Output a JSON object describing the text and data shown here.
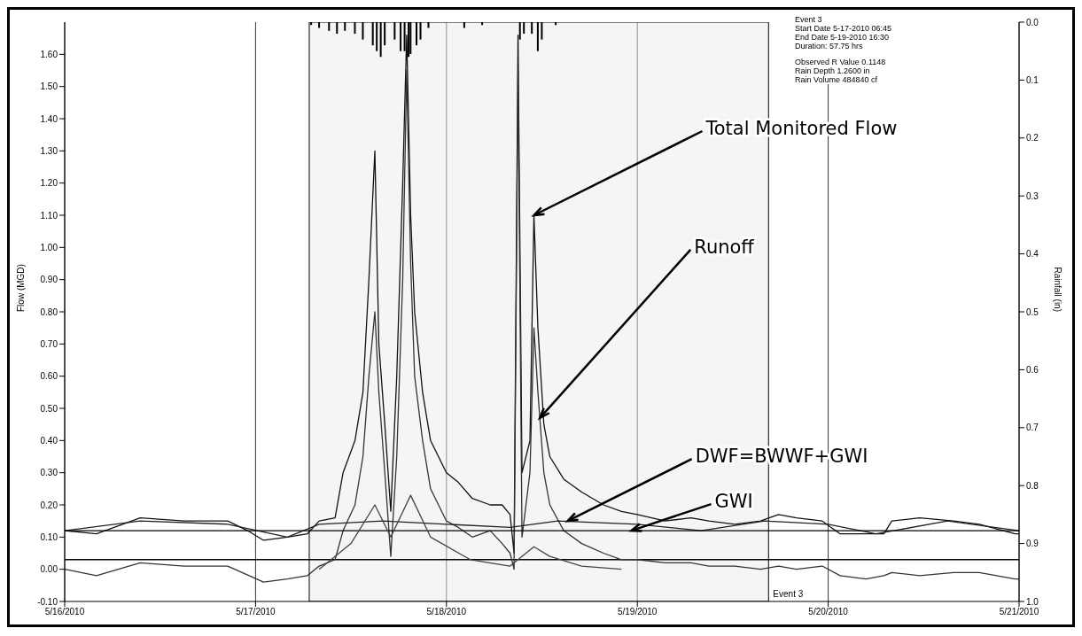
{
  "chart_data": {
    "type": "line",
    "ylabel": "Flow (MGD)",
    "y2label": "Rainfall (in)",
    "xlim": [
      "2010-05-16",
      "2010-05-21"
    ],
    "xticks": [
      {
        "value": "2010-05-16",
        "label": "5/16/2010"
      },
      {
        "value": "2010-05-17",
        "label": "5/17/2010"
      },
      {
        "value": "2010-05-18",
        "label": "5/18/2010"
      },
      {
        "value": "2010-05-19",
        "label": "5/19/2010"
      },
      {
        "value": "2010-05-20",
        "label": "5/20/2010"
      },
      {
        "value": "2010-05-21",
        "label": "5/21/2010"
      }
    ],
    "ylim": [
      -0.1,
      1.7
    ],
    "yticks": [
      {
        "value": -0.1,
        "label": "-0.10"
      },
      {
        "value": 0,
        "label": "0.00"
      },
      {
        "value": 0.1,
        "label": "0.10"
      },
      {
        "value": 0.2,
        "label": "0.20"
      },
      {
        "value": 0.3,
        "label": "0.30"
      },
      {
        "value": 0.4,
        "label": "0.40"
      },
      {
        "value": 0.5,
        "label": "0.50"
      },
      {
        "value": 0.6,
        "label": "0.60"
      },
      {
        "value": 0.7,
        "label": "0.70"
      },
      {
        "value": 0.8,
        "label": "0.80"
      },
      {
        "value": 0.9,
        "label": "0.90"
      },
      {
        "value": 1.0,
        "label": "1.00"
      },
      {
        "value": 1.1,
        "label": "1.10"
      },
      {
        "value": 1.2,
        "label": "1.20"
      },
      {
        "value": 1.3,
        "label": "1.30"
      },
      {
        "value": 1.4,
        "label": "1.40"
      },
      {
        "value": 1.5,
        "label": "1.50"
      },
      {
        "value": 1.6,
        "label": "1.60"
      }
    ],
    "y2lim": [
      1.0,
      0.0
    ],
    "y2ticks": [
      {
        "value": 0,
        "label": "0.0"
      },
      {
        "value": 0.1,
        "label": "0.1"
      },
      {
        "value": 0.2,
        "label": "0.2"
      },
      {
        "value": 0.3,
        "label": "0.3"
      },
      {
        "value": 0.4,
        "label": "0.4"
      },
      {
        "value": 0.5,
        "label": "0.5"
      },
      {
        "value": 0.6,
        "label": "0.6"
      },
      {
        "value": 0.7,
        "label": "0.7"
      },
      {
        "value": 0.8,
        "label": "0.8"
      },
      {
        "value": 0.9,
        "label": "0.9"
      },
      {
        "value": 1.0,
        "label": "1.0"
      }
    ],
    "grid": "x",
    "marker": "none",
    "line_style": "solid",
    "series": [
      {
        "color": "#111111",
        "x": [
          "2010-05-16T00:00",
          "2010-05-16T04:00",
          "2010-05-16T09:30",
          "2010-05-16T15:00",
          "2010-05-16T20:30",
          "2010-05-16T23:00",
          "2010-05-17T01:00",
          "2010-05-17T04:00",
          "2010-05-17T06:30",
          "2010-05-17T08:00",
          "2010-05-17T10:00",
          "2010-05-17T11:00",
          "2010-05-17T12:30",
          "2010-05-17T13:30",
          "2010-05-17T14:15",
          "2010-05-17T15:00",
          "2010-05-17T15:30",
          "2010-05-17T16:15",
          "2010-05-17T17:00",
          "2010-05-17T17:45",
          "2010-05-17T18:30",
          "2010-05-17T19:00",
          "2010-05-17T19:30",
          "2010-05-17T20:00",
          "2010-05-17T21:00",
          "2010-05-17T22:00",
          "2010-05-18T00:00",
          "2010-05-18T01:30",
          "2010-05-18T03:15",
          "2010-05-18T05:30",
          "2010-05-18T07:00",
          "2010-05-18T08:00",
          "2010-05-18T08:30",
          "2010-05-18T09:00",
          "2010-05-18T09:30",
          "2010-05-18T10:30",
          "2010-05-18T11:00",
          "2010-05-18T11:30",
          "2010-05-18T12:15",
          "2010-05-18T13:00",
          "2010-05-18T14:45",
          "2010-05-18T17:00",
          "2010-05-18T19:45",
          "2010-05-18T22:00",
          "2010-05-19T00:00",
          "2010-05-19T03:30",
          "2010-05-19T06:45",
          "2010-05-19T09:00",
          "2010-05-19T12:15",
          "2010-05-19T15:30",
          "2010-05-19T17:45",
          "2010-05-19T20:00",
          "2010-05-19T23:15",
          "2010-05-20T01:30",
          "2010-05-20T04:45",
          "2010-05-20T07:00",
          "2010-05-20T08:00",
          "2010-05-20T11:30",
          "2010-05-20T15:45",
          "2010-05-20T19:00",
          "2010-05-20T23:30",
          "2010-05-21T00:00"
        ],
        "values": [
          0.12,
          0.11,
          0.16,
          0.15,
          0.15,
          0.12,
          0.09,
          0.1,
          0.11,
          0.15,
          0.16,
          0.3,
          0.4,
          0.55,
          0.9,
          1.3,
          0.7,
          0.45,
          0.18,
          0.6,
          1.2,
          1.66,
          1.1,
          0.8,
          0.55,
          0.4,
          0.3,
          0.27,
          0.22,
          0.2,
          0.2,
          0.17,
          0.05,
          1.66,
          0.3,
          0.4,
          1.1,
          0.75,
          0.45,
          0.35,
          0.28,
          0.24,
          0.2,
          0.18,
          0.17,
          0.15,
          0.16,
          0.15,
          0.14,
          0.15,
          0.17,
          0.16,
          0.15,
          0.11,
          0.11,
          0.11,
          0.15,
          0.16,
          0.15,
          0.14,
          0.11,
          0.11
        ]
      },
      {
        "color": "#333333",
        "x": [
          "2010-05-16T00:00",
          "2010-05-16T04:00",
          "2010-05-16T09:30",
          "2010-05-16T15:00",
          "2010-05-16T20:30",
          "2010-05-17T01:00",
          "2010-05-17T04:00",
          "2010-05-17T06:30",
          "2010-05-17T08:00",
          "2010-05-17T10:00",
          "2010-05-17T11:00",
          "2010-05-17T12:30",
          "2010-05-17T13:30",
          "2010-05-17T14:15",
          "2010-05-17T15:00",
          "2010-05-17T15:30",
          "2010-05-17T16:15",
          "2010-05-17T17:00",
          "2010-05-17T17:45",
          "2010-05-17T18:30",
          "2010-05-17T19:00",
          "2010-05-17T19:30",
          "2010-05-17T20:00",
          "2010-05-17T21:00",
          "2010-05-17T22:00",
          "2010-05-18T00:00",
          "2010-05-18T01:30",
          "2010-05-18T03:15",
          "2010-05-18T05:30",
          "2010-05-18T07:00",
          "2010-05-18T08:00",
          "2010-05-18T08:30",
          "2010-05-18T09:00",
          "2010-05-18T09:30",
          "2010-05-18T10:30",
          "2010-05-18T11:00",
          "2010-05-18T11:30",
          "2010-05-18T12:15",
          "2010-05-18T13:00",
          "2010-05-18T14:45",
          "2010-05-18T17:00",
          "2010-05-18T19:45",
          "2010-05-18T22:00",
          "2010-05-19T00:00",
          "2010-05-19T03:30",
          "2010-05-19T06:45",
          "2010-05-19T09:00",
          "2010-05-19T12:15",
          "2010-05-19T15:30",
          "2010-05-19T17:45",
          "2010-05-19T20:00",
          "2010-05-19T23:15",
          "2010-05-20T01:30",
          "2010-05-20T04:45",
          "2010-05-20T07:00",
          "2010-05-20T08:00",
          "2010-05-20T11:30",
          "2010-05-20T15:45",
          "2010-05-20T19:00",
          "2010-05-20T23:30",
          "2010-05-21T00:00"
        ],
        "values": [
          0.0,
          -0.02,
          0.02,
          0.01,
          0.01,
          -0.04,
          -0.03,
          -0.02,
          0.01,
          0.03,
          0.12,
          0.2,
          0.35,
          0.6,
          0.8,
          0.55,
          0.3,
          0.04,
          0.35,
          0.9,
          1.55,
          0.95,
          0.6,
          0.4,
          0.25,
          0.15,
          0.13,
          0.1,
          0.12,
          0.08,
          0.05,
          0.0,
          1.55,
          0.1,
          0.3,
          0.75,
          0.55,
          0.3,
          0.2,
          0.12,
          0.08,
          0.05,
          0.03,
          0.03,
          0.02,
          0.02,
          0.01,
          0.01,
          0.0,
          0.01,
          0.0,
          0.01,
          -0.02,
          -0.03,
          -0.02,
          -0.01,
          -0.02,
          -0.01,
          -0.01,
          -0.03,
          -0.03
        ]
      },
      {
        "color": "#222222",
        "x": [
          "2010-05-16T00:00",
          "2010-05-16T09:30",
          "2010-05-16T20:30",
          "2010-05-17T04:00",
          "2010-05-17T08:00",
          "2010-05-17T16:00",
          "2010-05-18T00:00",
          "2010-05-18T08:00",
          "2010-05-18T14:00",
          "2010-05-19T00:00",
          "2010-05-19T08:00",
          "2010-05-19T16:00",
          "2010-05-20T00:00",
          "2010-05-20T06:00",
          "2010-05-20T15:00",
          "2010-05-21T00:00"
        ],
        "values": [
          0.12,
          0.15,
          0.14,
          0.1,
          0.14,
          0.15,
          0.14,
          0.13,
          0.15,
          0.14,
          0.12,
          0.15,
          0.14,
          0.11,
          0.15,
          0.12
        ]
      },
      {
        "color": "#000000",
        "x": [
          "2010-05-16T00:00",
          "2010-05-21T00:00"
        ],
        "values": [
          0.12,
          0.12
        ]
      },
      {
        "color": "#444444",
        "x": [
          "2010-05-17T08:00",
          "2010-05-17T12:00",
          "2010-05-17T15:00",
          "2010-05-17T17:00",
          "2010-05-17T19:30",
          "2010-05-17T22:00",
          "2010-05-18T03:00",
          "2010-05-18T08:00",
          "2010-05-18T11:00",
          "2010-05-18T13:00",
          "2010-05-18T17:00",
          "2010-05-18T22:00"
        ],
        "values": [
          0.0,
          0.08,
          0.2,
          0.1,
          0.23,
          0.1,
          0.03,
          0.01,
          0.07,
          0.04,
          0.01,
          0.0
        ]
      },
      {
        "type": "bar",
        "axis": "y2",
        "color": "#000000",
        "x": [
          "2010-05-17T07:00",
          "2010-05-17T08:00",
          "2010-05-17T09:15",
          "2010-05-17T10:15",
          "2010-05-17T11:15",
          "2010-05-17T12:30",
          "2010-05-17T13:30",
          "2010-05-17T14:45",
          "2010-05-17T15:15",
          "2010-05-17T15:45",
          "2010-05-17T16:15",
          "2010-05-17T17:30",
          "2010-05-17T18:15",
          "2010-05-17T18:45",
          "2010-05-17T19:15",
          "2010-05-17T19:30",
          "2010-05-17T20:15",
          "2010-05-17T20:45",
          "2010-05-17T21:45",
          "2010-05-18T02:15",
          "2010-05-18T04:30",
          "2010-05-18T09:15",
          "2010-05-18T09:45",
          "2010-05-18T10:45",
          "2010-05-18T11:30",
          "2010-05-18T12:00",
          "2010-05-18T13:45"
        ],
        "values": [
          0.005,
          0.01,
          0.015,
          0.02,
          0.015,
          0.02,
          0.03,
          0.04,
          0.05,
          0.06,
          0.04,
          0.03,
          0.05,
          0.05,
          0.06,
          0.055,
          0.04,
          0.03,
          0.01,
          0.01,
          0.005,
          0.03,
          0.02,
          0.02,
          0.05,
          0.03,
          0.005
        ]
      }
    ],
    "ref_lines": [
      {
        "axis": "y",
        "value": 0.03,
        "color": "#000000"
      }
    ],
    "bands": [
      {
        "axis": "x",
        "from": "2010-05-17T06:45",
        "to": "2010-05-19T16:30",
        "label": "Event 3",
        "color": "#ececec"
      }
    ],
    "annotations": [
      {
        "text": "Total Monitored Flow",
        "x": "2010-05-18T11:00",
        "y": 1.1
      },
      {
        "text": "Runoff",
        "x": "2010-05-18T11:45",
        "y": 0.47
      },
      {
        "text": "DWF=BWWF+GWI",
        "x": "2010-05-18T15:15",
        "y": 0.15
      },
      {
        "text": "GWI",
        "x": "2010-05-18T23:15",
        "y": 0.12
      },
      "Event 3",
      "Start Date 5-17-2010 06:45",
      "End Date 5-19-2010 16:30",
      "Duration: 57.75 hrs",
      "Observed R Value 0.1148",
      "Rain Depth 1.2600 in",
      "Rain Volume 484840 cf"
    ]
  }
}
